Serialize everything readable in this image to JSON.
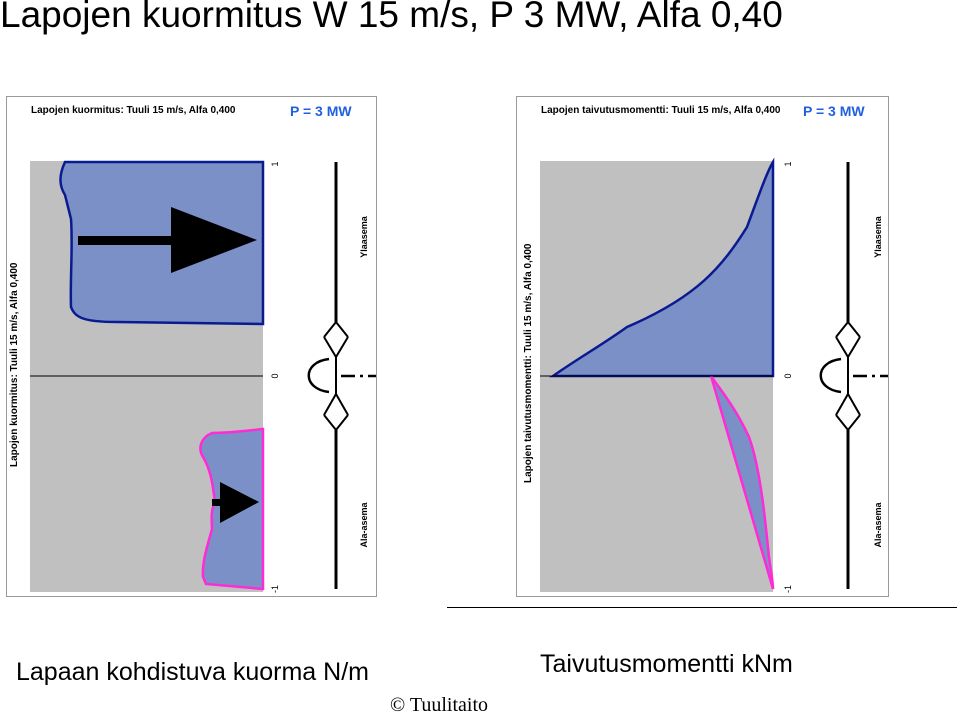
{
  "page_title": "Lapojen kuormitus W 15 m/s, P 3 MW, Alfa 0,40",
  "colors": {
    "fill": "#7b90c6",
    "upper_line": "#0a1a90",
    "lower_line": "#ff2bd6",
    "plot_bg": "#c0c0c0",
    "power_text": "#2060e0"
  },
  "left_panel": {
    "header": "Lapojen kuormitus: Tuuli 15 m/s, Alfa 0,400",
    "power": "P = 3 MW",
    "side_label": "Lapojen kuormitus: Tuuli 15 m/s, Alfa 0,400",
    "ticks": [
      "1",
      "0",
      "-1"
    ],
    "upper_position": "Ylaasema",
    "lower_position": "Ala-asema"
  },
  "right_panel": {
    "header": "Lapojen taivutusmomentti: Tuuli 15 m/s, Alfa 0,400",
    "power": "P = 3 MW",
    "side_label": "Lapojen taivutusmomentti: Tuuli 15 m/s, Alfa 0,400",
    "ticks": [
      "1",
      "0",
      "-1"
    ],
    "upper_position": "Ylaasema",
    "lower_position": "Ala-asema"
  },
  "captions": {
    "left": "Lapaan kohdistuva kuorma N/m",
    "right": "Taivutusmomentti kNm"
  },
  "copyright": "© Tuulitaito"
}
